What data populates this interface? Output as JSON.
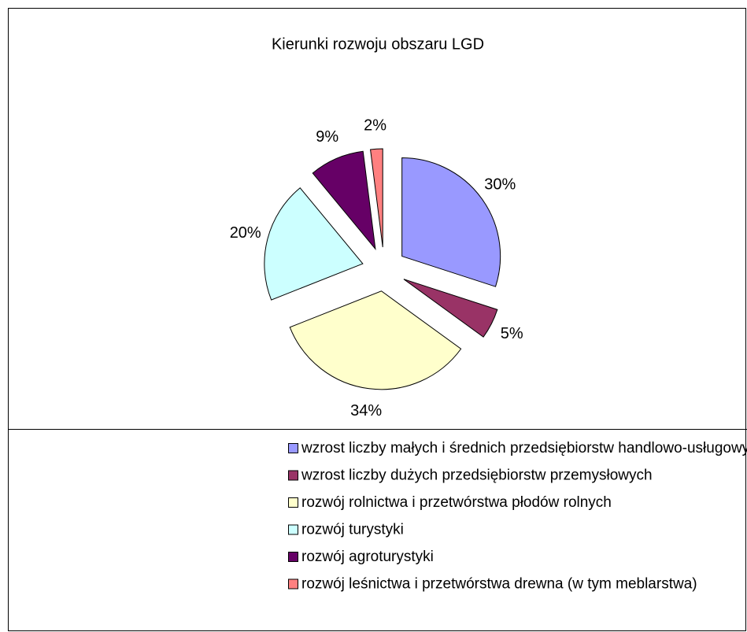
{
  "chart_data": {
    "type": "pie",
    "title": "Kierunki rozwoju obszaru LGD",
    "categories": [
      "wzrost liczby małych i średnich przedsiębiorstw handlowo-usługowych",
      "wzrost liczby dużych przedsiębiorstw przemysłowych",
      "rozwój rolnictwa i przetwórstwa płodów rolnych",
      "rozwój turystyki",
      "rozwój agroturystyki",
      "rozwój leśnictwa i przetwórstwa drewna (w tym meblarstwa)"
    ],
    "values": [
      30,
      5,
      34,
      20,
      9,
      2
    ],
    "value_labels": [
      "30%",
      "5%",
      "34%",
      "20%",
      "9%",
      "2%"
    ],
    "colors": [
      "#9999ff",
      "#993366",
      "#ffffcc",
      "#ccffff",
      "#660066",
      "#ff8080"
    ],
    "legend": "bottom"
  }
}
